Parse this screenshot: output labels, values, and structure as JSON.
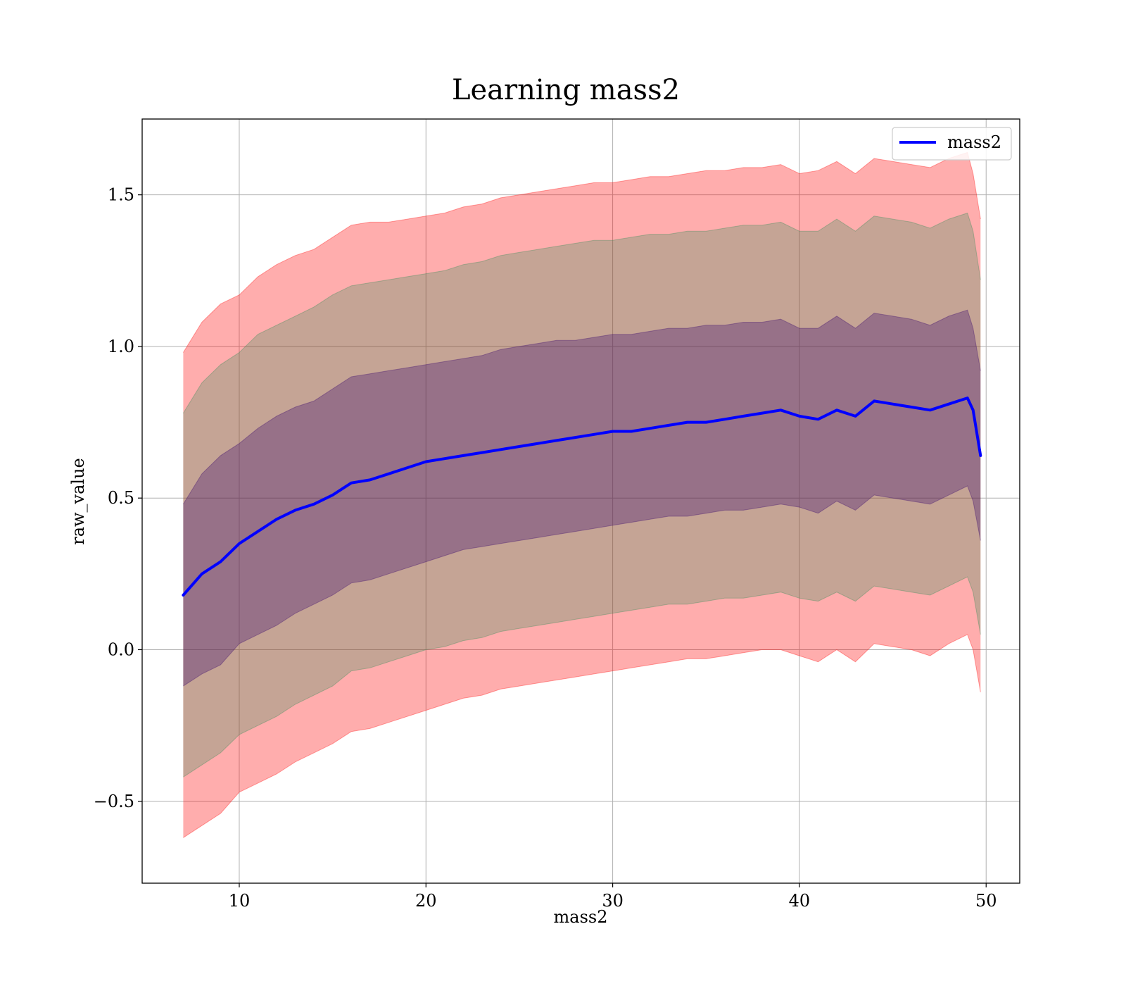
{
  "chart_data": {
    "type": "line",
    "title": "Learning mass2",
    "xlabel": "mass2",
    "ylabel": "raw_value",
    "xlim": [
      4.8,
      51.8
    ],
    "ylim": [
      -0.77,
      1.75
    ],
    "xticks": [
      {
        "value": 10,
        "label": "10"
      },
      {
        "value": 20,
        "label": "20"
      },
      {
        "value": 30,
        "label": "30"
      },
      {
        "value": 40,
        "label": "40"
      },
      {
        "value": 50,
        "label": "50"
      }
    ],
    "yticks": [
      {
        "value": -0.5,
        "label": "−0.5"
      },
      {
        "value": 0.0,
        "label": "0.0"
      },
      {
        "value": 0.5,
        "label": "0.5"
      },
      {
        "value": 1.0,
        "label": "1.0"
      },
      {
        "value": 1.5,
        "label": "1.5"
      }
    ],
    "grid": true,
    "legend": {
      "position": "upper right",
      "entries": [
        {
          "label": "mass2",
          "color": "#0000ff"
        }
      ]
    },
    "x": [
      7.0,
      8.0,
      9.0,
      10.0,
      11.0,
      12.0,
      13.0,
      14.0,
      15.0,
      16.0,
      17.0,
      18.0,
      19.0,
      20.0,
      21.0,
      22.0,
      23.0,
      24.0,
      25.0,
      26.0,
      27.0,
      28.0,
      29.0,
      30.0,
      31.0,
      32.0,
      33.0,
      34.0,
      35.0,
      36.0,
      37.0,
      38.0,
      39.0,
      40.0,
      41.0,
      42.0,
      43.0,
      44.0,
      45.0,
      46.0,
      47.0,
      48.0,
      49.0,
      49.3,
      49.7
    ],
    "series": [
      {
        "name": "mass2",
        "color": "#0000ff",
        "values": [
          0.18,
          0.25,
          0.29,
          0.35,
          0.39,
          0.43,
          0.46,
          0.48,
          0.51,
          0.55,
          0.56,
          0.58,
          0.6,
          0.62,
          0.63,
          0.64,
          0.65,
          0.66,
          0.67,
          0.68,
          0.69,
          0.7,
          0.71,
          0.72,
          0.72,
          0.73,
          0.74,
          0.75,
          0.75,
          0.76,
          0.77,
          0.78,
          0.79,
          0.77,
          0.76,
          0.79,
          0.77,
          0.82,
          0.81,
          0.8,
          0.79,
          0.81,
          0.83,
          0.79,
          0.64
        ]
      }
    ],
    "bands": [
      {
        "color": "#ff0000",
        "opacity": 0.32,
        "upper": [
          0.98,
          1.08,
          1.14,
          1.17,
          1.23,
          1.27,
          1.3,
          1.32,
          1.36,
          1.4,
          1.41,
          1.41,
          1.42,
          1.43,
          1.44,
          1.46,
          1.47,
          1.49,
          1.5,
          1.51,
          1.52,
          1.53,
          1.54,
          1.54,
          1.55,
          1.56,
          1.56,
          1.57,
          1.58,
          1.58,
          1.59,
          1.59,
          1.6,
          1.57,
          1.58,
          1.61,
          1.57,
          1.62,
          1.61,
          1.6,
          1.59,
          1.62,
          1.64,
          1.57,
          1.42
        ],
        "lower": [
          -0.62,
          -0.58,
          -0.54,
          -0.47,
          -0.44,
          -0.41,
          -0.37,
          -0.34,
          -0.31,
          -0.27,
          -0.26,
          -0.24,
          -0.22,
          -0.2,
          -0.18,
          -0.16,
          -0.15,
          -0.13,
          -0.12,
          -0.11,
          -0.1,
          -0.09,
          -0.08,
          -0.07,
          -0.06,
          -0.05,
          -0.04,
          -0.03,
          -0.03,
          -0.02,
          -0.01,
          0.0,
          0.0,
          -0.02,
          -0.04,
          0.0,
          -0.04,
          0.02,
          0.01,
          0.0,
          -0.02,
          0.02,
          0.05,
          0.0,
          -0.14
        ]
      },
      {
        "color": "#2e8b57",
        "opacity": 0.28,
        "upper": [
          0.78,
          0.88,
          0.94,
          0.98,
          1.04,
          1.07,
          1.1,
          1.13,
          1.17,
          1.2,
          1.21,
          1.22,
          1.23,
          1.24,
          1.25,
          1.27,
          1.28,
          1.3,
          1.31,
          1.32,
          1.33,
          1.34,
          1.35,
          1.35,
          1.36,
          1.37,
          1.37,
          1.38,
          1.38,
          1.39,
          1.4,
          1.4,
          1.41,
          1.38,
          1.38,
          1.42,
          1.38,
          1.43,
          1.42,
          1.41,
          1.39,
          1.42,
          1.44,
          1.38,
          1.22
        ],
        "lower": [
          -0.42,
          -0.38,
          -0.34,
          -0.28,
          -0.25,
          -0.22,
          -0.18,
          -0.15,
          -0.12,
          -0.07,
          -0.06,
          -0.04,
          -0.02,
          0.0,
          0.01,
          0.03,
          0.04,
          0.06,
          0.07,
          0.08,
          0.09,
          0.1,
          0.11,
          0.12,
          0.13,
          0.14,
          0.15,
          0.15,
          0.16,
          0.17,
          0.17,
          0.18,
          0.19,
          0.17,
          0.16,
          0.19,
          0.16,
          0.21,
          0.2,
          0.19,
          0.18,
          0.21,
          0.24,
          0.19,
          0.05
        ]
      },
      {
        "color": "#3a0a6e",
        "opacity": 0.33,
        "upper": [
          0.48,
          0.58,
          0.64,
          0.68,
          0.73,
          0.77,
          0.8,
          0.82,
          0.86,
          0.9,
          0.91,
          0.92,
          0.93,
          0.94,
          0.95,
          0.96,
          0.97,
          0.99,
          1.0,
          1.01,
          1.02,
          1.02,
          1.03,
          1.04,
          1.04,
          1.05,
          1.06,
          1.06,
          1.07,
          1.07,
          1.08,
          1.08,
          1.09,
          1.06,
          1.06,
          1.1,
          1.06,
          1.11,
          1.1,
          1.09,
          1.07,
          1.1,
          1.12,
          1.06,
          0.92
        ],
        "lower": [
          -0.12,
          -0.08,
          -0.05,
          0.02,
          0.05,
          0.08,
          0.12,
          0.15,
          0.18,
          0.22,
          0.23,
          0.25,
          0.27,
          0.29,
          0.31,
          0.33,
          0.34,
          0.35,
          0.36,
          0.37,
          0.38,
          0.39,
          0.4,
          0.41,
          0.42,
          0.43,
          0.44,
          0.44,
          0.45,
          0.46,
          0.46,
          0.47,
          0.48,
          0.47,
          0.45,
          0.49,
          0.46,
          0.51,
          0.5,
          0.49,
          0.48,
          0.51,
          0.54,
          0.49,
          0.36
        ]
      }
    ]
  }
}
